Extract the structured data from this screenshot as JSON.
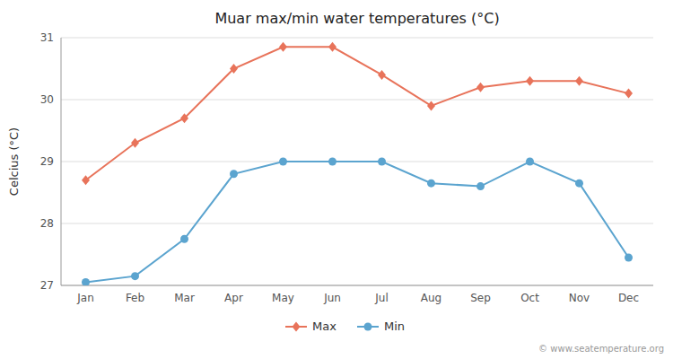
{
  "chart_data": {
    "type": "line",
    "title": "Muar max/min water temperatures (°C)",
    "y_label": "Celcius (°C)",
    "categories": [
      "Jan",
      "Feb",
      "Mar",
      "Apr",
      "May",
      "Jun",
      "Jul",
      "Aug",
      "Sep",
      "Oct",
      "Nov",
      "Dec"
    ],
    "series": [
      {
        "name": "Max",
        "color": "#E8735A",
        "marker": "diamond",
        "values": [
          28.7,
          29.3,
          29.7,
          30.5,
          30.85,
          30.85,
          30.4,
          29.9,
          30.2,
          30.3,
          30.3,
          30.1
        ]
      },
      {
        "name": "Min",
        "color": "#5BA4CF",
        "marker": "circle",
        "values": [
          27.05,
          27.15,
          27.75,
          28.8,
          29.0,
          29.0,
          29.0,
          28.65,
          28.6,
          29.0,
          28.65,
          27.45
        ]
      }
    ],
    "ylim": [
      27,
      31
    ],
    "yticks": [
      27,
      28,
      29,
      30,
      31
    ],
    "grid": true,
    "legend": "bottom",
    "annotations": [
      "© www.seatemperature.org"
    ]
  }
}
